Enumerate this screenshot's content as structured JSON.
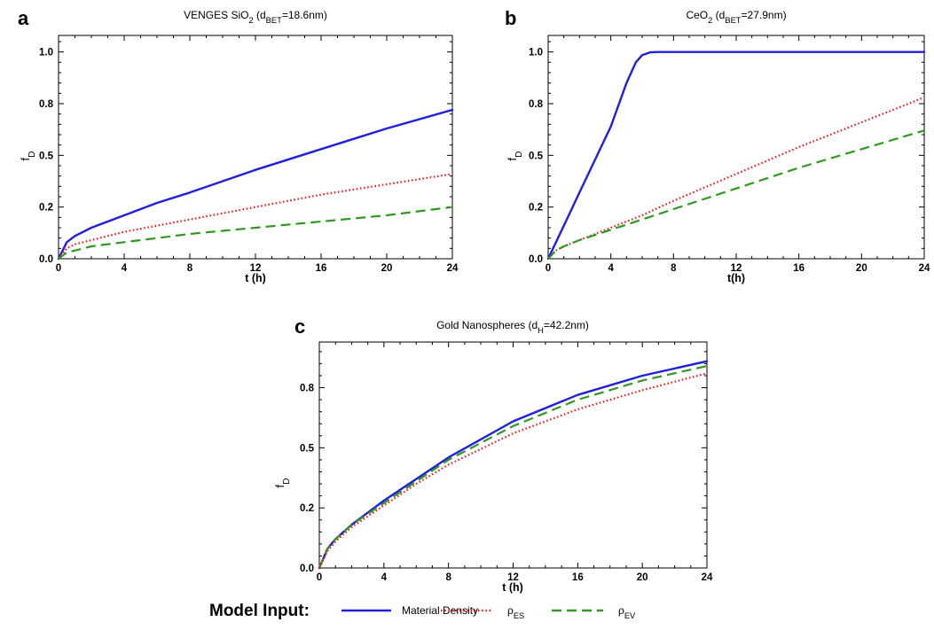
{
  "chart_data": [
    {
      "panel": "a",
      "type": "line",
      "title": "VENGES SiO",
      "title_sub": "2",
      "title_rest": " (d",
      "title_sub2": "BET",
      "title_end": "=18.6nm)",
      "xlabel": "t (h)",
      "ylabel": "f",
      "ylabel_sub": "D",
      "xlim": [
        0,
        24
      ],
      "ylim": [
        0,
        1.08
      ],
      "xticks": [
        0,
        4,
        8,
        12,
        16,
        20,
        24
      ],
      "ytick_values": [
        0,
        0.25,
        0.5,
        0.75,
        1.0
      ],
      "ytick_labels": [
        "0.0",
        "0.2",
        "0.5",
        "0.8",
        "1.0"
      ],
      "series": [
        {
          "key": "material_density",
          "x": [
            0,
            0.5,
            1,
            2,
            4,
            6,
            8,
            12,
            16,
            20,
            24
          ],
          "values": [
            0,
            0.08,
            0.11,
            0.15,
            0.21,
            0.27,
            0.32,
            0.43,
            0.53,
            0.63,
            0.72
          ]
        },
        {
          "key": "rho_es",
          "x": [
            0,
            0.5,
            1,
            2,
            4,
            6,
            8,
            12,
            16,
            20,
            24
          ],
          "values": [
            0,
            0.05,
            0.07,
            0.09,
            0.13,
            0.16,
            0.19,
            0.25,
            0.31,
            0.36,
            0.41
          ]
        },
        {
          "key": "rho_ev",
          "x": [
            0,
            0.5,
            1,
            2,
            4,
            6,
            8,
            12,
            16,
            20,
            24
          ],
          "values": [
            0,
            0.03,
            0.04,
            0.06,
            0.08,
            0.1,
            0.12,
            0.15,
            0.18,
            0.21,
            0.25
          ]
        }
      ]
    },
    {
      "panel": "b",
      "type": "line",
      "title": "CeO",
      "title_sub": "2",
      "title_rest": " (d",
      "title_sub2": "BET",
      "title_end": "=27.9nm)",
      "xlabel": "t(h)",
      "ylabel": "f",
      "ylabel_sub": "D",
      "xlim": [
        0,
        24
      ],
      "ylim": [
        0,
        1.08
      ],
      "xticks": [
        0,
        4,
        8,
        12,
        16,
        20,
        24
      ],
      "ytick_values": [
        0,
        0.25,
        0.5,
        0.75,
        1.0
      ],
      "ytick_labels": [
        "0.0",
        "0.2",
        "0.5",
        "0.8",
        "1.0"
      ],
      "series": [
        {
          "key": "material_density",
          "x": [
            0,
            1,
            2,
            3,
            4,
            5,
            5.6,
            6,
            6.5,
            7,
            8,
            12,
            16,
            20,
            24
          ],
          "values": [
            0,
            0.16,
            0.32,
            0.48,
            0.64,
            0.85,
            0.95,
            0.985,
            0.998,
            1.0,
            1.0,
            1.0,
            1.0,
            1.0,
            1.0
          ]
        },
        {
          "key": "rho_es",
          "x": [
            0,
            0.5,
            1,
            2,
            4,
            6,
            8,
            12,
            16,
            20,
            24
          ],
          "values": [
            0,
            0.04,
            0.06,
            0.09,
            0.15,
            0.21,
            0.28,
            0.41,
            0.54,
            0.66,
            0.78
          ]
        },
        {
          "key": "rho_ev",
          "x": [
            0,
            0.5,
            1,
            2,
            4,
            6,
            8,
            12,
            16,
            20,
            24
          ],
          "values": [
            0,
            0.04,
            0.06,
            0.09,
            0.14,
            0.19,
            0.24,
            0.34,
            0.44,
            0.53,
            0.62
          ]
        }
      ]
    },
    {
      "panel": "c",
      "type": "line",
      "title": "Gold Nanospheres (d",
      "title_sub": "H",
      "title_rest": "=42.2nm)",
      "title_sub2": "",
      "title_end": "",
      "xlabel": "t (h)",
      "ylabel": "f",
      "ylabel_sub": "D",
      "xlim": [
        0,
        24
      ],
      "ylim": [
        0,
        0.94
      ],
      "xticks": [
        0,
        4,
        8,
        12,
        16,
        20,
        24
      ],
      "ytick_values": [
        0,
        0.25,
        0.5,
        0.75
      ],
      "ytick_labels": [
        "0.0",
        "0.2",
        "0.5",
        "0.8"
      ],
      "series": [
        {
          "key": "material_density",
          "x": [
            0,
            0.5,
            1,
            2,
            4,
            6,
            8,
            12,
            16,
            20,
            24
          ],
          "values": [
            0,
            0.08,
            0.12,
            0.18,
            0.28,
            0.37,
            0.46,
            0.61,
            0.72,
            0.8,
            0.86
          ]
        },
        {
          "key": "rho_ev",
          "x": [
            0,
            0.5,
            1,
            2,
            4,
            6,
            8,
            12,
            16,
            20,
            24
          ],
          "values": [
            0,
            0.08,
            0.12,
            0.18,
            0.27,
            0.36,
            0.45,
            0.59,
            0.7,
            0.78,
            0.84
          ]
        },
        {
          "key": "rho_es",
          "x": [
            0,
            0.5,
            1,
            2,
            4,
            6,
            8,
            12,
            16,
            20,
            24
          ],
          "values": [
            0,
            0.07,
            0.11,
            0.17,
            0.26,
            0.35,
            0.43,
            0.56,
            0.66,
            0.74,
            0.81
          ]
        }
      ]
    }
  ],
  "legend": {
    "title": "Model Input:",
    "items": [
      {
        "key": "material_density",
        "label": "Material Density",
        "label_sub": "",
        "color": "#1f1fe0",
        "style": "solid"
      },
      {
        "key": "rho_es",
        "label": "ρ",
        "label_sub": "ES",
        "color": "#ee1c1c",
        "style": "dotted"
      },
      {
        "key": "rho_ev",
        "label": "ρ",
        "label_sub": "EV",
        "color": "#2e9a1e",
        "style": "dashed"
      }
    ]
  }
}
